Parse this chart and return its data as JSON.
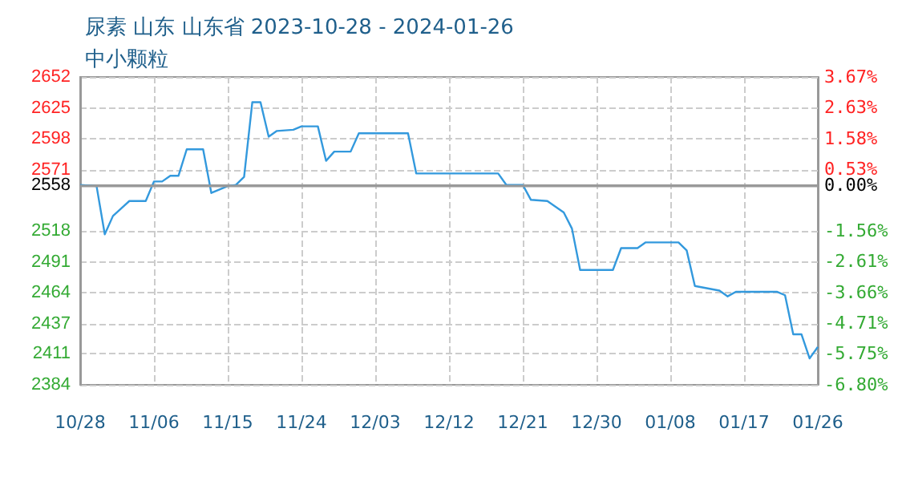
{
  "chart_data": {
    "type": "line",
    "title": "尿素 山东 山东省 2023-10-28 - 2024-01-26",
    "subtitle": "中小颗粒",
    "x": [
      "2023-10-28",
      "2023-10-30",
      "2023-10-31",
      "2023-11-01",
      "2023-11-03",
      "2023-11-05",
      "2023-11-06",
      "2023-11-07",
      "2023-11-08",
      "2023-11-09",
      "2023-11-10",
      "2023-11-12",
      "2023-11-13",
      "2023-11-15",
      "2023-11-16",
      "2023-11-17",
      "2023-11-18",
      "2023-11-19",
      "2023-11-20",
      "2023-11-21",
      "2023-11-23",
      "2023-11-24",
      "2023-11-26",
      "2023-11-27",
      "2023-11-28",
      "2023-11-30",
      "2023-12-01",
      "2023-12-07",
      "2023-12-08",
      "2023-12-18",
      "2023-12-19",
      "2023-12-21",
      "2023-12-22",
      "2023-12-24",
      "2023-12-26",
      "2023-12-27",
      "2023-12-28",
      "2024-01-01",
      "2024-01-02",
      "2024-01-04",
      "2024-01-05",
      "2024-01-09",
      "2024-01-10",
      "2024-01-11",
      "2024-01-14",
      "2024-01-15",
      "2024-01-16",
      "2024-01-21",
      "2024-01-22",
      "2024-01-23",
      "2024-01-24",
      "2024-01-25",
      "2024-01-26"
    ],
    "series": [
      {
        "color": "#3399dd",
        "values": [
          2558,
          2557,
          2515,
          2531,
          2544,
          2544,
          2561,
          2561,
          2566,
          2566,
          2589,
          2589,
          2551,
          2557,
          2558,
          2565,
          2630,
          2630,
          2600,
          2605,
          2606,
          2609,
          2609,
          2579,
          2587,
          2587,
          2603,
          2603,
          2568,
          2568,
          2558,
          2558,
          2545,
          2544,
          2534,
          2520,
          2484,
          2484,
          2503,
          2503,
          2508,
          2508,
          2501,
          2470,
          2466,
          2461,
          2465,
          2465,
          2462,
          2428,
          2428,
          2407,
          2417
        ]
      }
    ],
    "xlim": [
      "2023-10-28",
      "2024-01-26"
    ],
    "xticks": [
      {
        "value": "2023-10-28",
        "label": "10/28"
      },
      {
        "value": "2023-11-06",
        "label": "11/06"
      },
      {
        "value": "2023-11-15",
        "label": "11/15"
      },
      {
        "value": "2023-11-24",
        "label": "11/24"
      },
      {
        "value": "2023-12-03",
        "label": "12/03"
      },
      {
        "value": "2023-12-12",
        "label": "12/12"
      },
      {
        "value": "2023-12-21",
        "label": "12/21"
      },
      {
        "value": "2023-12-30",
        "label": "12/30"
      },
      {
        "value": "2024-01-08",
        "label": "01/08"
      },
      {
        "value": "2024-01-17",
        "label": "01/17"
      },
      {
        "value": "2024-01-26",
        "label": "01/26"
      }
    ],
    "ylim": [
      2384,
      2652
    ],
    "yticks": [
      2384,
      2411,
      2437,
      2464,
      2491,
      2518,
      2558,
      2571,
      2598,
      2625,
      2652
    ],
    "y2lim": [
      -6.8,
      3.67
    ],
    "y2ticks": [
      {
        "value": -6.8,
        "label": "-6.80%"
      },
      {
        "value": -5.75,
        "label": "-5.75%"
      },
      {
        "value": -4.71,
        "label": "-4.71%"
      },
      {
        "value": -3.66,
        "label": "-3.66%"
      },
      {
        "value": -2.61,
        "label": "-2.61%"
      },
      {
        "value": -1.56,
        "label": "-1.56%"
      },
      {
        "value": 0,
        "label": "0.00%"
      },
      {
        "value": 0.53,
        "label": "0.53%"
      },
      {
        "value": 1.58,
        "label": "1.58%"
      },
      {
        "value": 2.63,
        "label": "2.63%"
      },
      {
        "value": 3.67,
        "label": "3.67%"
      }
    ],
    "ref_lines": [
      {
        "axis": "y",
        "value": 2558,
        "color": "#999999"
      }
    ],
    "grid": true,
    "marker": "none",
    "line_style": "solid"
  }
}
